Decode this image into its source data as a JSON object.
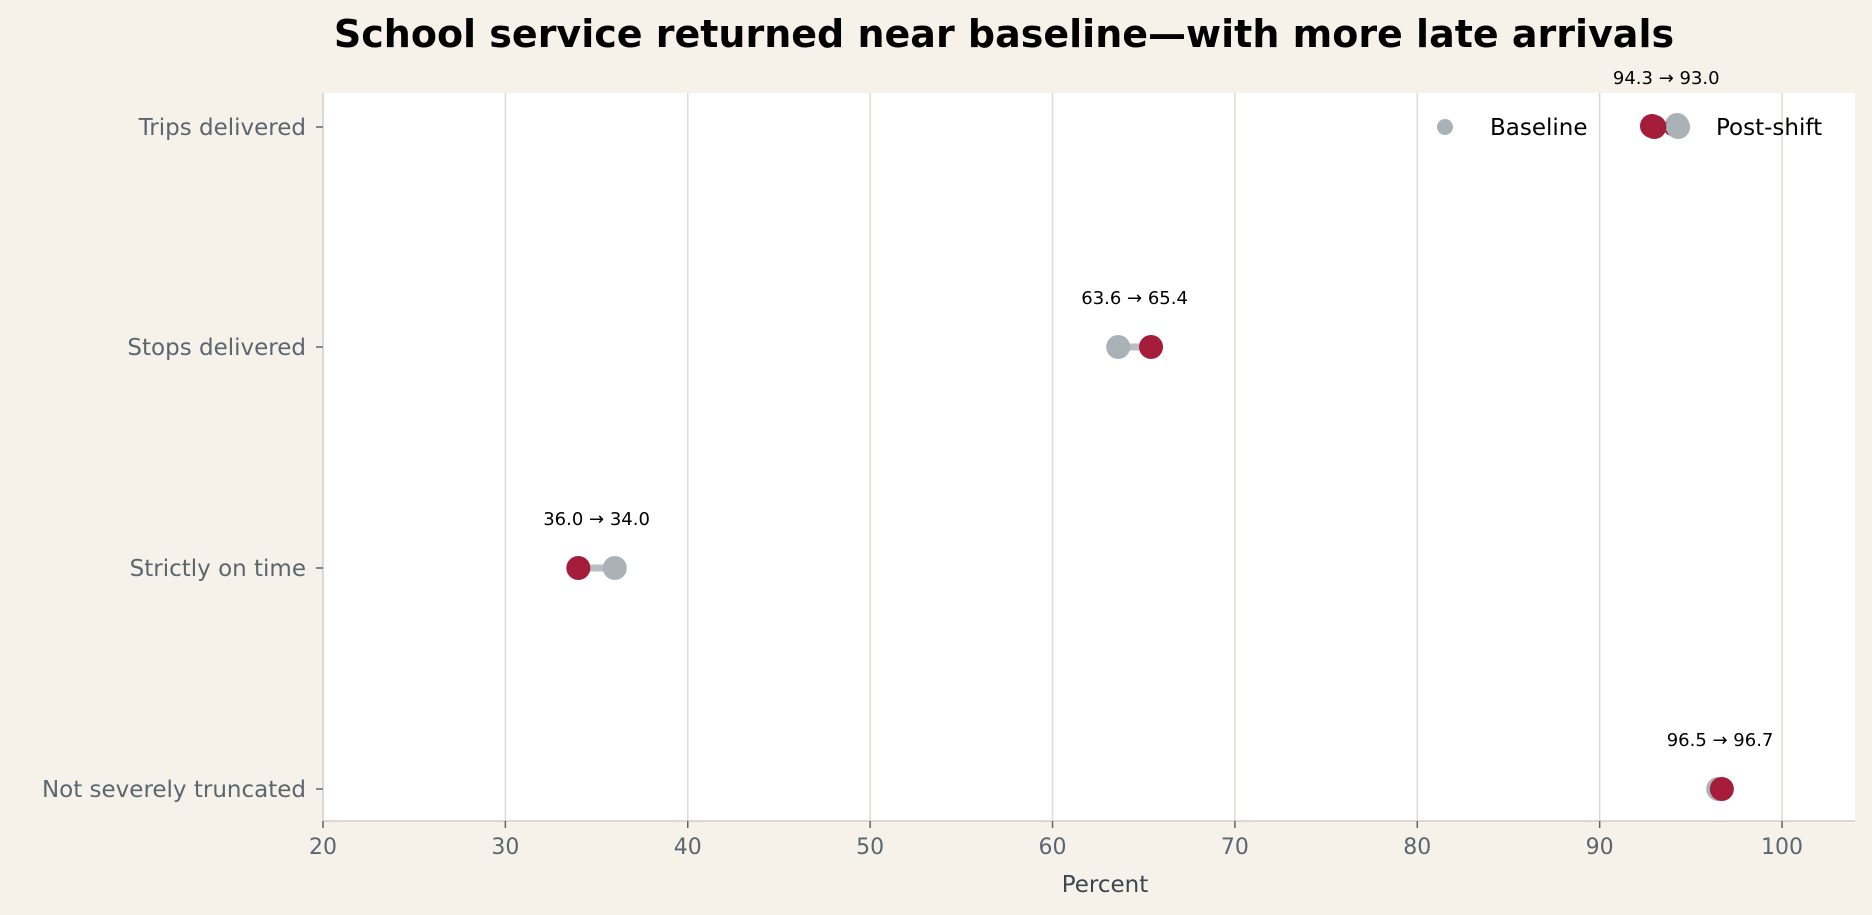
{
  "colors": {
    "page_background": "#f6f2ea",
    "plot_background": "#ffffff",
    "grid": "#dedad0",
    "axis": "#d2cec4",
    "baseline": "#aab1b7",
    "post_shift": "#a51d3b",
    "connector": "#b8bec3",
    "tick_text": "#5b6670"
  },
  "chart_data": {
    "type": "dumbbell",
    "title": "School service returned near baseline—with more late arrivals",
    "xlabel": "Percent",
    "ylabel": "",
    "xlim": [
      20,
      104
    ],
    "x_ticks": [
      20,
      30,
      40,
      50,
      60,
      70,
      80,
      90,
      100
    ],
    "x_tick_labels": [
      "20",
      "30",
      "40",
      "50",
      "60",
      "70",
      "80",
      "90",
      "100"
    ],
    "grid": true,
    "categories": [
      "Trips delivered",
      "Stops delivered",
      "Strictly on time",
      "Not severely truncated"
    ],
    "series": [
      {
        "name": "Baseline",
        "values": [
          94.3,
          63.6,
          36.0,
          96.5
        ]
      },
      {
        "name": "Post-shift",
        "values": [
          93.0,
          65.4,
          34.0,
          96.7
        ]
      }
    ],
    "annotations": [
      "94.3 → 93.0",
      "63.6 → 65.4",
      "36.0 → 34.0",
      "96.5 → 96.7"
    ],
    "legend": {
      "position": "top-right",
      "entries": [
        "Baseline",
        "Post-shift"
      ]
    }
  }
}
